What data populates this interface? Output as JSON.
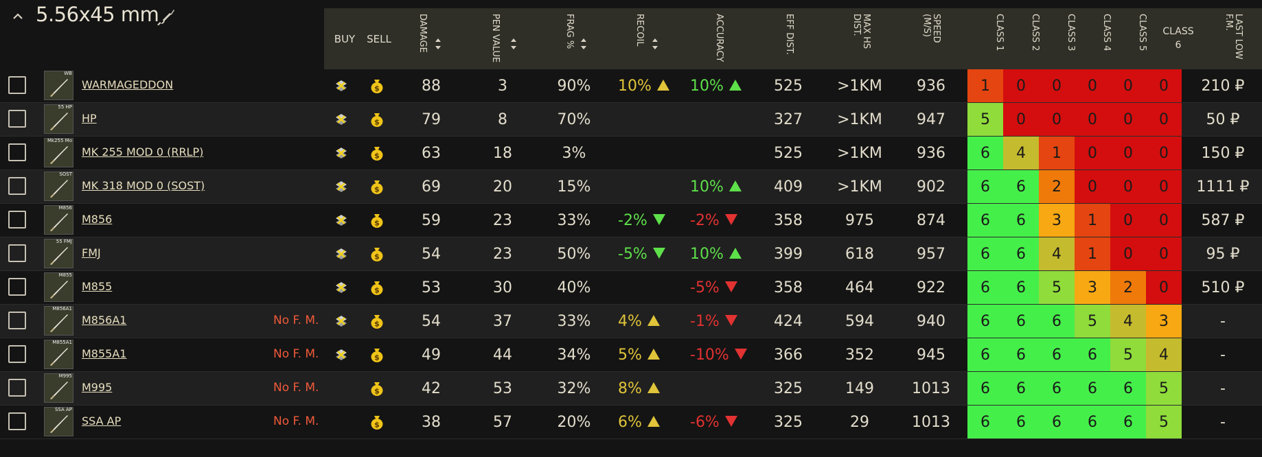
{
  "caliber": {
    "title": "5.56x45 mm",
    "collapse_icon": "chevron-up-icon",
    "weapon_icon": "rifle-icon"
  },
  "header": {
    "buy": "BUY",
    "sell": "SELL",
    "damage": "DAMAGE",
    "pen_value": "PEN VALUE",
    "frag": "FRAG %",
    "recoil": "RECOIL",
    "accuracy": "ACCURACY",
    "eff_dist": "EFF DIST.",
    "max_hs_dist": "MAX HS\nDIST.",
    "speed": "SPEED\n(M/S)",
    "class1": "CLASS 1",
    "class2": "CLASS 2",
    "class3": "CLASS 3",
    "class4": "CLASS 4",
    "class5": "CLASS 5",
    "class6": "CLASS 6",
    "last_low_fm": "LAST LOW\nF.M."
  },
  "class_colors": {
    "0": "#d40e0e",
    "1": "#e54510",
    "2": "#ef7a0a",
    "3": "#f7a812",
    "4": "#c5bb2e",
    "5": "#8fdc3b",
    "6": "#45ef4a"
  },
  "modifier_colors": {
    "pos": "#e0c43a",
    "neg": "#e23232",
    "good": "#5ee04a"
  },
  "rows": [
    {
      "name": "WARMAGEDDON",
      "thumb": "WB",
      "no_fm": "",
      "buy": true,
      "sell": true,
      "damage": "88",
      "pen": "3",
      "frag": "90%",
      "recoil": {
        "text": "10%",
        "dir": "up",
        "tone": "pos"
      },
      "accuracy": {
        "text": "10%",
        "dir": "up",
        "tone": "good"
      },
      "eff_dist": "525",
      "max_hs": ">1KM",
      "speed": "936",
      "classes": [
        1,
        0,
        0,
        0,
        0,
        0
      ],
      "price": "210 ₽"
    },
    {
      "name": "HP",
      "thumb": "55 HP",
      "no_fm": "",
      "buy": true,
      "sell": true,
      "damage": "79",
      "pen": "8",
      "frag": "70%",
      "recoil": null,
      "accuracy": null,
      "eff_dist": "327",
      "max_hs": ">1KM",
      "speed": "947",
      "classes": [
        5,
        0,
        0,
        0,
        0,
        0
      ],
      "price": "50 ₽"
    },
    {
      "name": "MK 255 MOD 0 (RRLP)",
      "thumb": "Mk255 Mo",
      "no_fm": "",
      "buy": true,
      "sell": true,
      "damage": "63",
      "pen": "18",
      "frag": "3%",
      "recoil": null,
      "accuracy": null,
      "eff_dist": "525",
      "max_hs": ">1KM",
      "speed": "936",
      "classes": [
        6,
        4,
        1,
        0,
        0,
        0
      ],
      "price": "150 ₽"
    },
    {
      "name": "MK 318 MOD 0 (SOST)",
      "thumb": "SOST",
      "no_fm": "",
      "buy": true,
      "sell": true,
      "damage": "69",
      "pen": "20",
      "frag": "15%",
      "recoil": null,
      "accuracy": {
        "text": "10%",
        "dir": "up",
        "tone": "good"
      },
      "eff_dist": "409",
      "max_hs": ">1KM",
      "speed": "902",
      "classes": [
        6,
        6,
        2,
        0,
        0,
        0
      ],
      "price": "1111 ₽"
    },
    {
      "name": "M856",
      "thumb": "M856",
      "no_fm": "",
      "buy": true,
      "sell": true,
      "damage": "59",
      "pen": "23",
      "frag": "33%",
      "recoil": {
        "text": "-2%",
        "dir": "down",
        "tone": "good"
      },
      "accuracy": {
        "text": "-2%",
        "dir": "down",
        "tone": "neg"
      },
      "eff_dist": "358",
      "max_hs": "975",
      "speed": "874",
      "classes": [
        6,
        6,
        3,
        1,
        0,
        0
      ],
      "price": "587 ₽"
    },
    {
      "name": "FMJ",
      "thumb": "55 FMJ",
      "no_fm": "",
      "buy": true,
      "sell": true,
      "damage": "54",
      "pen": "23",
      "frag": "50%",
      "recoil": {
        "text": "-5%",
        "dir": "down",
        "tone": "good"
      },
      "accuracy": {
        "text": "10%",
        "dir": "up",
        "tone": "good"
      },
      "eff_dist": "399",
      "max_hs": "618",
      "speed": "957",
      "classes": [
        6,
        6,
        4,
        1,
        0,
        0
      ],
      "price": "95 ₽"
    },
    {
      "name": "M855",
      "thumb": "M855",
      "no_fm": "",
      "buy": true,
      "sell": true,
      "damage": "53",
      "pen": "30",
      "frag": "40%",
      "recoil": null,
      "accuracy": {
        "text": "-5%",
        "dir": "down",
        "tone": "neg"
      },
      "eff_dist": "358",
      "max_hs": "464",
      "speed": "922",
      "classes": [
        6,
        6,
        5,
        3,
        2,
        0
      ],
      "price": "510 ₽"
    },
    {
      "name": "M856A1",
      "thumb": "M856A1",
      "no_fm": "No F. M.",
      "buy": true,
      "sell": true,
      "damage": "54",
      "pen": "37",
      "frag": "33%",
      "recoil": {
        "text": "4%",
        "dir": "up",
        "tone": "pos"
      },
      "accuracy": {
        "text": "-1%",
        "dir": "down",
        "tone": "neg"
      },
      "eff_dist": "424",
      "max_hs": "594",
      "speed": "940",
      "classes": [
        6,
        6,
        6,
        5,
        4,
        3
      ],
      "price": "-"
    },
    {
      "name": "M855A1",
      "thumb": "M855A1",
      "no_fm": "No F. M.",
      "buy": true,
      "sell": true,
      "damage": "49",
      "pen": "44",
      "frag": "34%",
      "recoil": {
        "text": "5%",
        "dir": "up",
        "tone": "pos"
      },
      "accuracy": {
        "text": "-10%",
        "dir": "down",
        "tone": "neg"
      },
      "eff_dist": "366",
      "max_hs": "352",
      "speed": "945",
      "classes": [
        6,
        6,
        6,
        6,
        5,
        4
      ],
      "price": "-"
    },
    {
      "name": "M995",
      "thumb": "M995",
      "no_fm": "No F. M.",
      "buy": false,
      "sell": true,
      "damage": "42",
      "pen": "53",
      "frag": "32%",
      "recoil": {
        "text": "8%",
        "dir": "up",
        "tone": "pos"
      },
      "accuracy": null,
      "eff_dist": "325",
      "max_hs": "149",
      "speed": "1013",
      "classes": [
        6,
        6,
        6,
        6,
        6,
        5
      ],
      "price": "-"
    },
    {
      "name": "SSA AP",
      "thumb": "SSA AP",
      "no_fm": "No F. M.",
      "buy": false,
      "sell": true,
      "damage": "38",
      "pen": "57",
      "frag": "20%",
      "recoil": {
        "text": "6%",
        "dir": "up",
        "tone": "pos"
      },
      "accuracy": {
        "text": "-6%",
        "dir": "down",
        "tone": "neg"
      },
      "eff_dist": "325",
      "max_hs": "29",
      "speed": "1013",
      "classes": [
        6,
        6,
        6,
        6,
        6,
        5
      ],
      "price": "-"
    }
  ]
}
